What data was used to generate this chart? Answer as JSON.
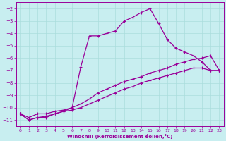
{
  "xlabel": "Windchill (Refroidissement éolien,°C)",
  "bg_color": "#c8eef0",
  "grid_color": "#aadddd",
  "line_color": "#990099",
  "xlim": [
    -0.5,
    23.5
  ],
  "ylim": [
    -11.5,
    -1.5
  ],
  "yticks": [
    -11,
    -10,
    -9,
    -8,
    -7,
    -6,
    -5,
    -4,
    -3,
    -2
  ],
  "xticks": [
    0,
    1,
    2,
    3,
    4,
    5,
    6,
    7,
    8,
    9,
    10,
    11,
    12,
    13,
    14,
    15,
    16,
    17,
    18,
    19,
    20,
    21,
    22,
    23
  ],
  "curve_peaked_x": [
    0,
    1,
    2,
    3,
    4,
    5,
    6,
    7,
    8,
    9,
    10,
    11,
    12,
    13,
    14,
    15,
    16,
    17,
    18,
    19,
    20,
    21,
    22,
    23
  ],
  "curve_peaked_y": [
    -10.5,
    -11.0,
    -10.8,
    -10.8,
    -10.5,
    -10.3,
    -10.0,
    -6.7,
    -4.2,
    -4.2,
    -4.0,
    -3.8,
    -3.0,
    -2.7,
    -2.3,
    -2.0,
    -3.2,
    -4.5,
    -5.2,
    -5.5,
    -5.8,
    -6.3,
    -7.0,
    -7.0
  ],
  "curve_mid_x": [
    0,
    1,
    2,
    3,
    4,
    5,
    6,
    7,
    8,
    9,
    10,
    11,
    12,
    13,
    14,
    15,
    16,
    17,
    18,
    19,
    20,
    21,
    22,
    23
  ],
  "curve_mid_y": [
    -10.5,
    -10.8,
    -10.5,
    -10.5,
    -10.3,
    -10.2,
    -10.0,
    -9.7,
    -9.3,
    -8.8,
    -8.5,
    -8.2,
    -7.9,
    -7.7,
    -7.5,
    -7.2,
    -7.0,
    -6.8,
    -6.5,
    -6.3,
    -6.1,
    -6.0,
    -5.8,
    -7.0
  ],
  "curve_low_x": [
    0,
    1,
    2,
    3,
    4,
    5,
    6,
    7,
    8,
    9,
    10,
    11,
    12,
    13,
    14,
    15,
    16,
    17,
    18,
    19,
    20,
    21,
    22,
    23
  ],
  "curve_low_y": [
    -10.5,
    -11.0,
    -10.8,
    -10.7,
    -10.5,
    -10.3,
    -10.2,
    -10.0,
    -9.7,
    -9.4,
    -9.1,
    -8.8,
    -8.5,
    -8.3,
    -8.0,
    -7.8,
    -7.6,
    -7.4,
    -7.2,
    -7.0,
    -6.8,
    -6.8,
    -7.0,
    -7.0
  ]
}
